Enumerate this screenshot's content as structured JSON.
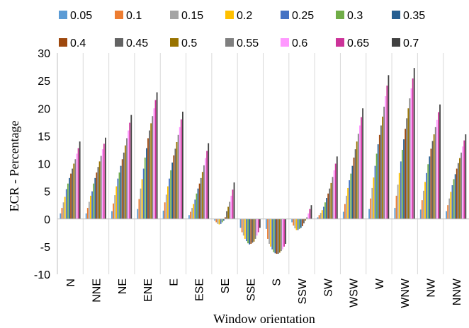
{
  "chart_data": {
    "type": "bar",
    "xlabel": "Window orientation",
    "ylabel": "ECR - Percentage",
    "ylim": [
      -10,
      30
    ],
    "yticks": [
      -10,
      -5,
      0,
      5,
      10,
      15,
      20,
      25,
      30
    ],
    "grid": "vertical separators between categories",
    "legend_position": "top",
    "categories": [
      "N",
      "NNE",
      "NE",
      "ENE",
      "E",
      "ESE",
      "SE",
      "SSE",
      "S",
      "SSW",
      "SW",
      "WSW",
      "W",
      "WNW",
      "NW",
      "NNW"
    ],
    "series": [
      {
        "name": "0.05",
        "color": "#5B9BD5",
        "values": [
          1.0,
          1.0,
          1.4,
          1.8,
          1.5,
          0.7,
          -0.3,
          -1.6,
          -1.8,
          -0.6,
          0.3,
          1.3,
          1.8,
          2.0,
          1.7,
          1.4
        ]
      },
      {
        "name": "0.1",
        "color": "#ED7D31",
        "values": [
          2.0,
          2.0,
          2.8,
          3.6,
          3.0,
          1.3,
          -0.6,
          -2.4,
          -3.6,
          -1.2,
          0.7,
          2.7,
          3.7,
          4.2,
          3.4,
          2.5
        ]
      },
      {
        "name": "0.15",
        "color": "#A5A5A5",
        "values": [
          3.0,
          3.1,
          4.3,
          5.5,
          4.4,
          2.0,
          -0.9,
          -3.0,
          -4.5,
          -1.7,
          1.1,
          4.2,
          5.6,
          6.2,
          5.1,
          3.7
        ]
      },
      {
        "name": "0.2",
        "color": "#FFC000",
        "values": [
          4.0,
          4.2,
          5.9,
          7.2,
          5.9,
          2.7,
          -1.0,
          -3.6,
          -5.0,
          -2.0,
          1.6,
          5.6,
          7.5,
          8.3,
          6.7,
          4.9
        ]
      },
      {
        "name": "0.25",
        "color": "#4472C4",
        "values": [
          5.4,
          5.0,
          7.3,
          9.1,
          7.3,
          3.5,
          -0.9,
          -4.0,
          -5.5,
          -2.0,
          2.2,
          7.0,
          9.6,
          10.4,
          8.3,
          6.1
        ]
      },
      {
        "name": "0.3",
        "color": "#70AD47",
        "values": [
          6.4,
          6.4,
          8.4,
          11.1,
          8.8,
          4.6,
          -0.6,
          -4.4,
          -6.0,
          -1.8,
          3.0,
          8.2,
          11.8,
          12.5,
          9.9,
          7.2
        ]
      },
      {
        "name": "0.35",
        "color": "#255E91",
        "values": [
          7.4,
          7.4,
          9.6,
          12.8,
          10.2,
          5.5,
          -0.3,
          -4.6,
          -6.2,
          -1.6,
          3.8,
          9.6,
          13.5,
          14.4,
          11.3,
          8.1
        ]
      },
      {
        "name": "0.4",
        "color": "#9E480E",
        "values": [
          8.2,
          8.4,
          10.8,
          14.6,
          11.5,
          6.4,
          0.3,
          -4.5,
          -6.3,
          -1.3,
          4.6,
          11.1,
          15.2,
          16.3,
          12.7,
          9.1
        ]
      },
      {
        "name": "0.45",
        "color": "#636363",
        "values": [
          9.1,
          9.4,
          12.0,
          16.0,
          12.7,
          7.4,
          1.4,
          -4.3,
          -6.3,
          -0.8,
          5.5,
          12.6,
          16.9,
          18.2,
          14.1,
          10.1
        ]
      },
      {
        "name": "0.5",
        "color": "#997300",
        "values": [
          10.0,
          10.4,
          13.3,
          17.3,
          13.9,
          8.5,
          2.2,
          -4.1,
          -6.1,
          -0.3,
          6.5,
          14.0,
          18.5,
          20.0,
          15.3,
          11.0
        ]
      },
      {
        "name": "0.55",
        "color": "#7F7F7F",
        "values": [
          10.8,
          11.4,
          14.6,
          18.6,
          15.2,
          9.7,
          3.1,
          -3.6,
          -5.8,
          0.3,
          7.6,
          15.4,
          20.3,
          21.8,
          16.6,
          12.0
        ]
      },
      {
        "name": "0.6",
        "color": "#FF99FF",
        "values": [
          11.8,
          12.6,
          16.0,
          20.0,
          16.6,
          11.0,
          4.2,
          -3.0,
          -5.5,
          1.0,
          8.8,
          16.9,
          22.2,
          23.6,
          17.9,
          13.1
        ]
      },
      {
        "name": "0.65",
        "color": "#CC3399",
        "values": [
          12.8,
          13.6,
          17.4,
          21.5,
          18.0,
          12.3,
          5.3,
          -2.4,
          -5.0,
          1.8,
          10.0,
          18.4,
          24.1,
          25.4,
          19.3,
          14.2
        ]
      },
      {
        "name": "0.7",
        "color": "#404040",
        "values": [
          14.0,
          14.7,
          18.8,
          22.9,
          19.4,
          13.7,
          6.6,
          -1.6,
          -4.5,
          2.5,
          11.3,
          20.0,
          26.0,
          27.3,
          20.7,
          15.3
        ]
      }
    ]
  }
}
